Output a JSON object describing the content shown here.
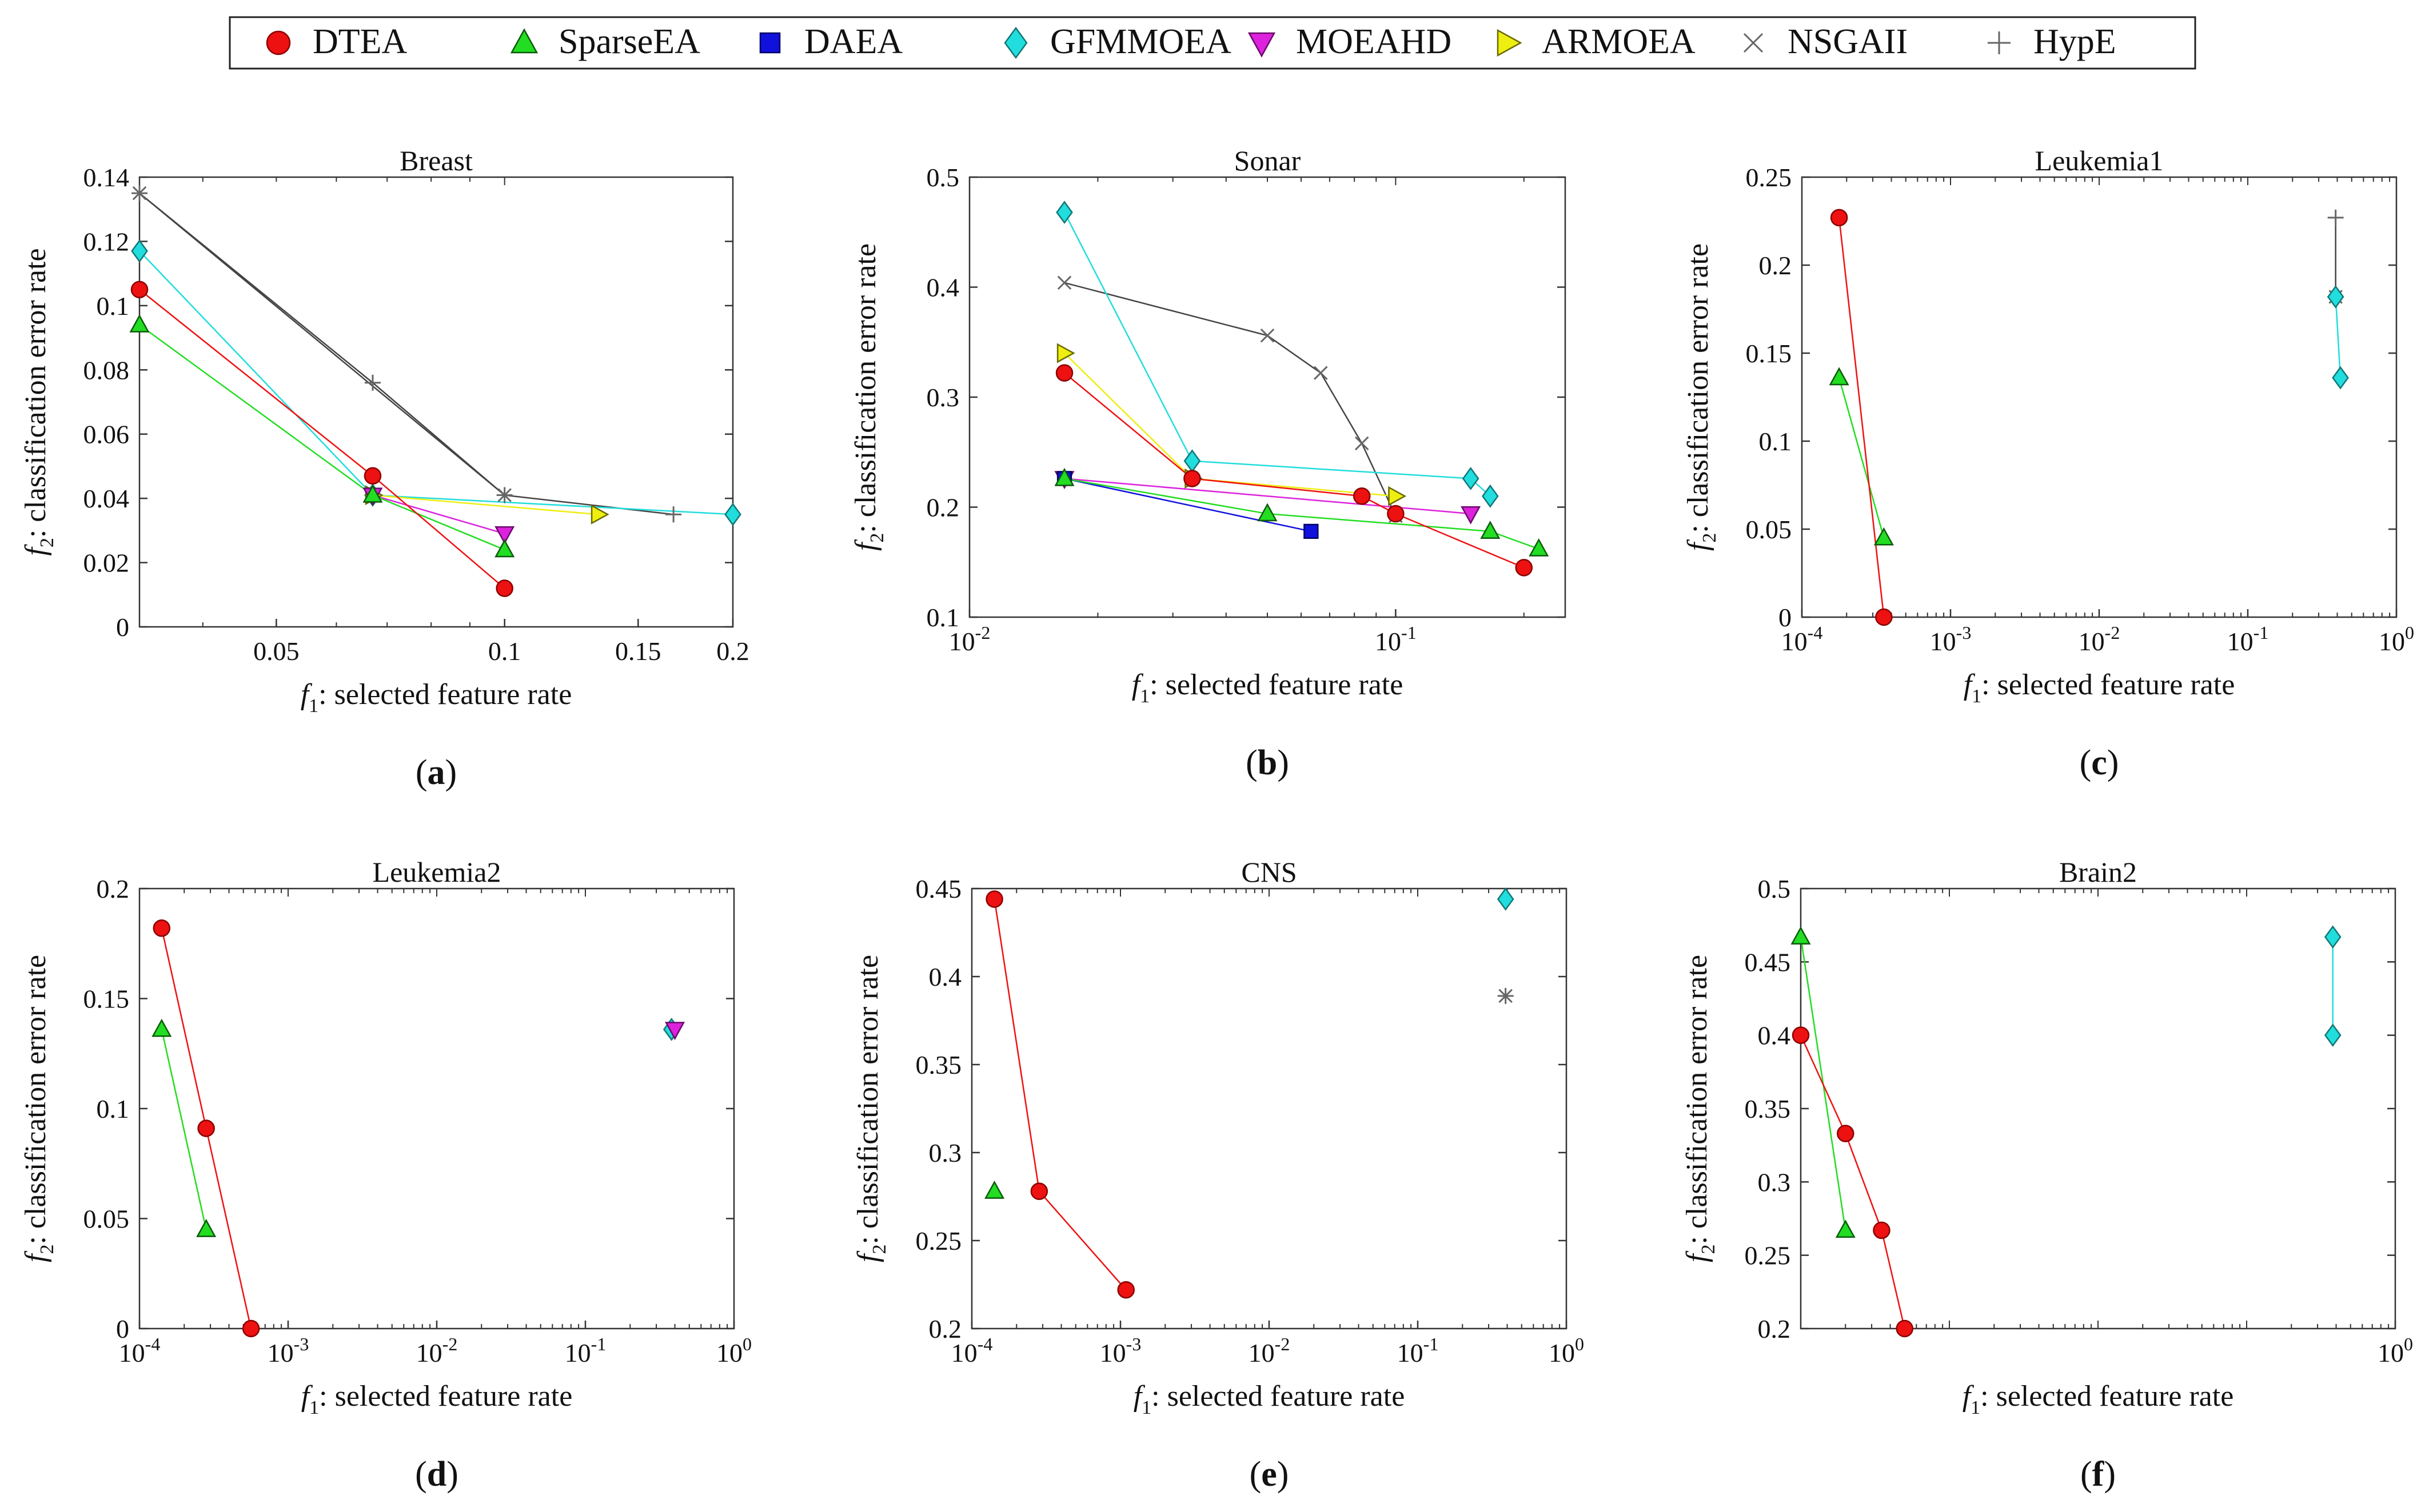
{
  "legend": [
    {
      "label": "DTEA",
      "color": "#ee1111",
      "marker": "circle"
    },
    {
      "label": "SparseEA",
      "color": "#22dd22",
      "marker": "triangle-up"
    },
    {
      "label": "DAEA",
      "color": "#1111dd",
      "marker": "square"
    },
    {
      "label": "GFMMOEA",
      "color": "#22dddd",
      "marker": "diamond"
    },
    {
      "label": "MOEAHD",
      "color": "#dd22dd",
      "marker": "triangle-down"
    },
    {
      "label": "ARMOEA",
      "color": "#eeee11",
      "marker": "triangle-right"
    },
    {
      "label": "NSGAII",
      "color": "#555555",
      "marker": "x"
    },
    {
      "label": "HypE",
      "color": "#555555",
      "marker": "plus"
    }
  ],
  "chart_data": [
    {
      "type": "line",
      "title": "Breast",
      "panel_label": "a",
      "xlabel": "f",
      "xlabel_sub": "1",
      "xlabel_rest": ": selected feature rate",
      "ylabel": "f",
      "ylabel_sub": "2",
      "ylabel_rest": ": classification error rate",
      "xscale": "log",
      "xlim": [
        0.033,
        0.2
      ],
      "ylim": [
        0,
        0.14
      ],
      "xticks": [
        0.05,
        0.1,
        0.15,
        0.2
      ],
      "xtick_labels": [
        "0.05",
        "0.1",
        "0.15",
        "0.2"
      ],
      "yticks": [
        0,
        0.02,
        0.04,
        0.06,
        0.08,
        0.1,
        0.12,
        0.14
      ],
      "ytick_labels": [
        "0",
        "0.02",
        "0.04",
        "0.06",
        "0.08",
        "0.1",
        "0.12",
        "0.14"
      ],
      "series": [
        {
          "name": "NSGAII",
          "x": [
            0.033,
            0.1
          ],
          "y": [
            0.135,
            0.041
          ]
        },
        {
          "name": "HypE",
          "x": [
            0.033,
            0.067,
            0.1,
            0.167
          ],
          "y": [
            0.135,
            0.076,
            0.041,
            0.035
          ]
        },
        {
          "name": "GFMMOEA",
          "x": [
            0.033,
            0.067,
            0.2
          ],
          "y": [
            0.117,
            0.041,
            0.035
          ]
        },
        {
          "name": "ARMOEA",
          "x": [
            0.067,
            0.133
          ],
          "y": [
            0.041,
            0.035
          ]
        },
        {
          "name": "MOEAHD",
          "x": [
            0.067,
            0.1
          ],
          "y": [
            0.041,
            0.029
          ]
        },
        {
          "name": "SparseEA",
          "x": [
            0.033,
            0.067,
            0.1
          ],
          "y": [
            0.094,
            0.041,
            0.024
          ]
        },
        {
          "name": "DTEA",
          "x": [
            0.033,
            0.067,
            0.1
          ],
          "y": [
            0.105,
            0.047,
            0.012
          ]
        }
      ]
    },
    {
      "type": "line",
      "title": "Sonar",
      "panel_label": "b",
      "xlabel": "f",
      "xlabel_sub": "1",
      "xlabel_rest": ": selected feature rate",
      "ylabel": "f",
      "ylabel_sub": "2",
      "ylabel_rest": ": classification error rate",
      "xscale": "log",
      "xlim": [
        0.01,
        0.25
      ],
      "ylim": [
        0.1,
        0.5
      ],
      "xticks": [
        0.01,
        0.1
      ],
      "xtick_labels": [
        "10",
        "10"
      ],
      "xtick_exps": [
        "-2",
        "-1"
      ],
      "yticks": [
        0.1,
        0.2,
        0.3,
        0.4,
        0.5
      ],
      "ytick_labels": [
        "0.1",
        "0.2",
        "0.3",
        "0.4",
        "0.5"
      ],
      "series": [
        {
          "name": "NSGAII",
          "x": [
            0.0167,
            0.05,
            0.0667,
            0.0833,
            0.1
          ],
          "y": [
            0.404,
            0.356,
            0.322,
            0.258,
            0.192
          ]
        },
        {
          "name": "GFMMOEA",
          "x": [
            0.0167,
            0.0333,
            0.15,
            0.1667
          ],
          "y": [
            0.468,
            0.242,
            0.226,
            0.21
          ]
        },
        {
          "name": "ARMOEA",
          "x": [
            0.0167,
            0.0333,
            0.1
          ],
          "y": [
            0.34,
            0.226,
            0.21
          ]
        },
        {
          "name": "MOEAHD",
          "x": [
            0.0167,
            0.15
          ],
          "y": [
            0.226,
            0.194
          ]
        },
        {
          "name": "DAEA",
          "x": [
            0.0167,
            0.0633
          ],
          "y": [
            0.226,
            0.178
          ]
        },
        {
          "name": "SparseEA",
          "x": [
            0.0167,
            0.05,
            0.1667,
            0.2167
          ],
          "y": [
            0.226,
            0.194,
            0.178,
            0.162
          ]
        },
        {
          "name": "DTEA",
          "x": [
            0.0167,
            0.0333,
            0.0833,
            0.1,
            0.2
          ],
          "y": [
            0.322,
            0.226,
            0.21,
            0.194,
            0.145
          ]
        }
      ]
    },
    {
      "type": "line",
      "title": "Leukemia1",
      "panel_label": "c",
      "xlabel": "f",
      "xlabel_sub": "1",
      "xlabel_rest": ": selected feature rate",
      "ylabel": "f",
      "ylabel_sub": "2",
      "ylabel_rest": ": classification error rate",
      "xscale": "log",
      "xlim": [
        0.0001,
        1
      ],
      "ylim": [
        0,
        0.25
      ],
      "xticks": [
        0.0001,
        0.001,
        0.01,
        0.1,
        1
      ],
      "xtick_labels": [
        "10",
        "10",
        "10",
        "10",
        "10"
      ],
      "xtick_exps": [
        "-4",
        "-3",
        "-2",
        "-1",
        "0"
      ],
      "yticks": [
        0,
        0.05,
        0.1,
        0.15,
        0.2,
        0.25
      ],
      "ytick_labels": [
        "0",
        "0.05",
        "0.1",
        "0.15",
        "0.2",
        "0.25"
      ],
      "series": [
        {
          "name": "HypE",
          "x": [
            0.39,
            0.39
          ],
          "y": [
            0.227,
            0.182
          ]
        },
        {
          "name": "NSGAII",
          "x": [
            0.39
          ],
          "y": [
            0.182
          ]
        },
        {
          "name": "GFMMOEA",
          "x": [
            0.39,
            0.42
          ],
          "y": [
            0.182,
            0.136
          ]
        },
        {
          "name": "SparseEA",
          "x": [
            0.000178,
            0.000356
          ],
          "y": [
            0.136,
            0.045
          ]
        },
        {
          "name": "DTEA",
          "x": [
            0.000178,
            0.000356
          ],
          "y": [
            0.227,
            0.0
          ]
        }
      ]
    },
    {
      "type": "line",
      "title": "Leukemia2",
      "panel_label": "d",
      "xlabel": "f",
      "xlabel_sub": "1",
      "xlabel_rest": ": selected feature rate",
      "ylabel": "f",
      "ylabel_sub": "2",
      "ylabel_rest": ": classification error rate",
      "xscale": "log",
      "xlim": [
        0.0001,
        1
      ],
      "ylim": [
        0,
        0.2
      ],
      "xticks": [
        0.0001,
        0.001,
        0.01,
        0.1,
        1
      ],
      "xtick_labels": [
        "10",
        "10",
        "10",
        "10",
        "10"
      ],
      "xtick_exps": [
        "-4",
        "-3",
        "-2",
        "-1",
        "0"
      ],
      "yticks": [
        0,
        0.05,
        0.1,
        0.15,
        0.2
      ],
      "ytick_labels": [
        "0",
        "0.05",
        "0.1",
        "0.15",
        "0.2"
      ],
      "series": [
        {
          "name": "GFMMOEA",
          "x": [
            0.38
          ],
          "y": [
            0.136
          ]
        },
        {
          "name": "MOEAHD",
          "x": [
            0.4
          ],
          "y": [
            0.136
          ]
        },
        {
          "name": "SparseEA",
          "x": [
            0.000141,
            0.000281
          ],
          "y": [
            0.136,
            0.045
          ]
        },
        {
          "name": "DTEA",
          "x": [
            0.000141,
            0.000281,
            0.000563
          ],
          "y": [
            0.182,
            0.091,
            0.0
          ]
        }
      ]
    },
    {
      "type": "line",
      "title": "CNS",
      "panel_label": "e",
      "xlabel": "f",
      "xlabel_sub": "1",
      "xlabel_rest": ": selected feature rate",
      "ylabel": "f",
      "ylabel_sub": "2",
      "ylabel_rest": ": classification error rate",
      "xscale": "log",
      "xlim": [
        0.0001,
        1
      ],
      "ylim": [
        0.2,
        0.45
      ],
      "xticks": [
        0.0001,
        0.001,
        0.01,
        0.1,
        1
      ],
      "xtick_labels": [
        "10",
        "10",
        "10",
        "10",
        "10"
      ],
      "xtick_exps": [
        "-4",
        "-3",
        "-2",
        "-1",
        "0"
      ],
      "yticks": [
        0.2,
        0.25,
        0.3,
        0.35,
        0.4,
        0.45
      ],
      "ytick_labels": [
        "0.2",
        "0.25",
        "0.3",
        "0.35",
        "0.4",
        "0.45"
      ],
      "series": [
        {
          "name": "GFMMOEA",
          "x": [
            0.39
          ],
          "y": [
            0.444
          ]
        },
        {
          "name": "NSGAII",
          "x": [
            0.39
          ],
          "y": [
            0.389
          ]
        },
        {
          "name": "HypE",
          "x": [
            0.39
          ],
          "y": [
            0.389
          ]
        },
        {
          "name": "SparseEA",
          "x": [
            0.000142
          ],
          "y": [
            0.278
          ]
        },
        {
          "name": "DTEA",
          "x": [
            0.000142,
            0.000284,
            0.00109
          ],
          "y": [
            0.444,
            0.278,
            0.222
          ]
        }
      ]
    },
    {
      "type": "line",
      "title": "Brain2",
      "panel_label": "f",
      "xlabel": "f",
      "xlabel_sub": "1",
      "xlabel_rest": ": selected feature rate",
      "ylabel": "f",
      "ylabel_sub": "2",
      "ylabel_rest": ": classification error rate",
      "xscale": "log",
      "xlim": [
        0.0001,
        1
      ],
      "ylim": [
        0.2,
        0.5
      ],
      "xticks": [
        1
      ],
      "xtick_labels": [
        "10"
      ],
      "xtick_exps": [
        "0"
      ],
      "yticks": [
        0.2,
        0.25,
        0.3,
        0.35,
        0.4,
        0.45,
        0.5
      ],
      "ytick_labels": [
        "0.2",
        "0.25",
        "0.3",
        "0.35",
        "0.4",
        "0.45",
        "0.5"
      ],
      "series": [
        {
          "name": "GFMMOEA",
          "x": [
            0.38,
            0.38
          ],
          "y": [
            0.467,
            0.4
          ]
        },
        {
          "name": "SparseEA",
          "x": [
            0.0001,
            0.0002
          ],
          "y": [
            0.467,
            0.267
          ]
        },
        {
          "name": "DTEA",
          "x": [
            0.0001,
            0.0002,
            0.00035,
            0.0005
          ],
          "y": [
            0.4,
            0.333,
            0.267,
            0.2
          ]
        }
      ]
    }
  ]
}
